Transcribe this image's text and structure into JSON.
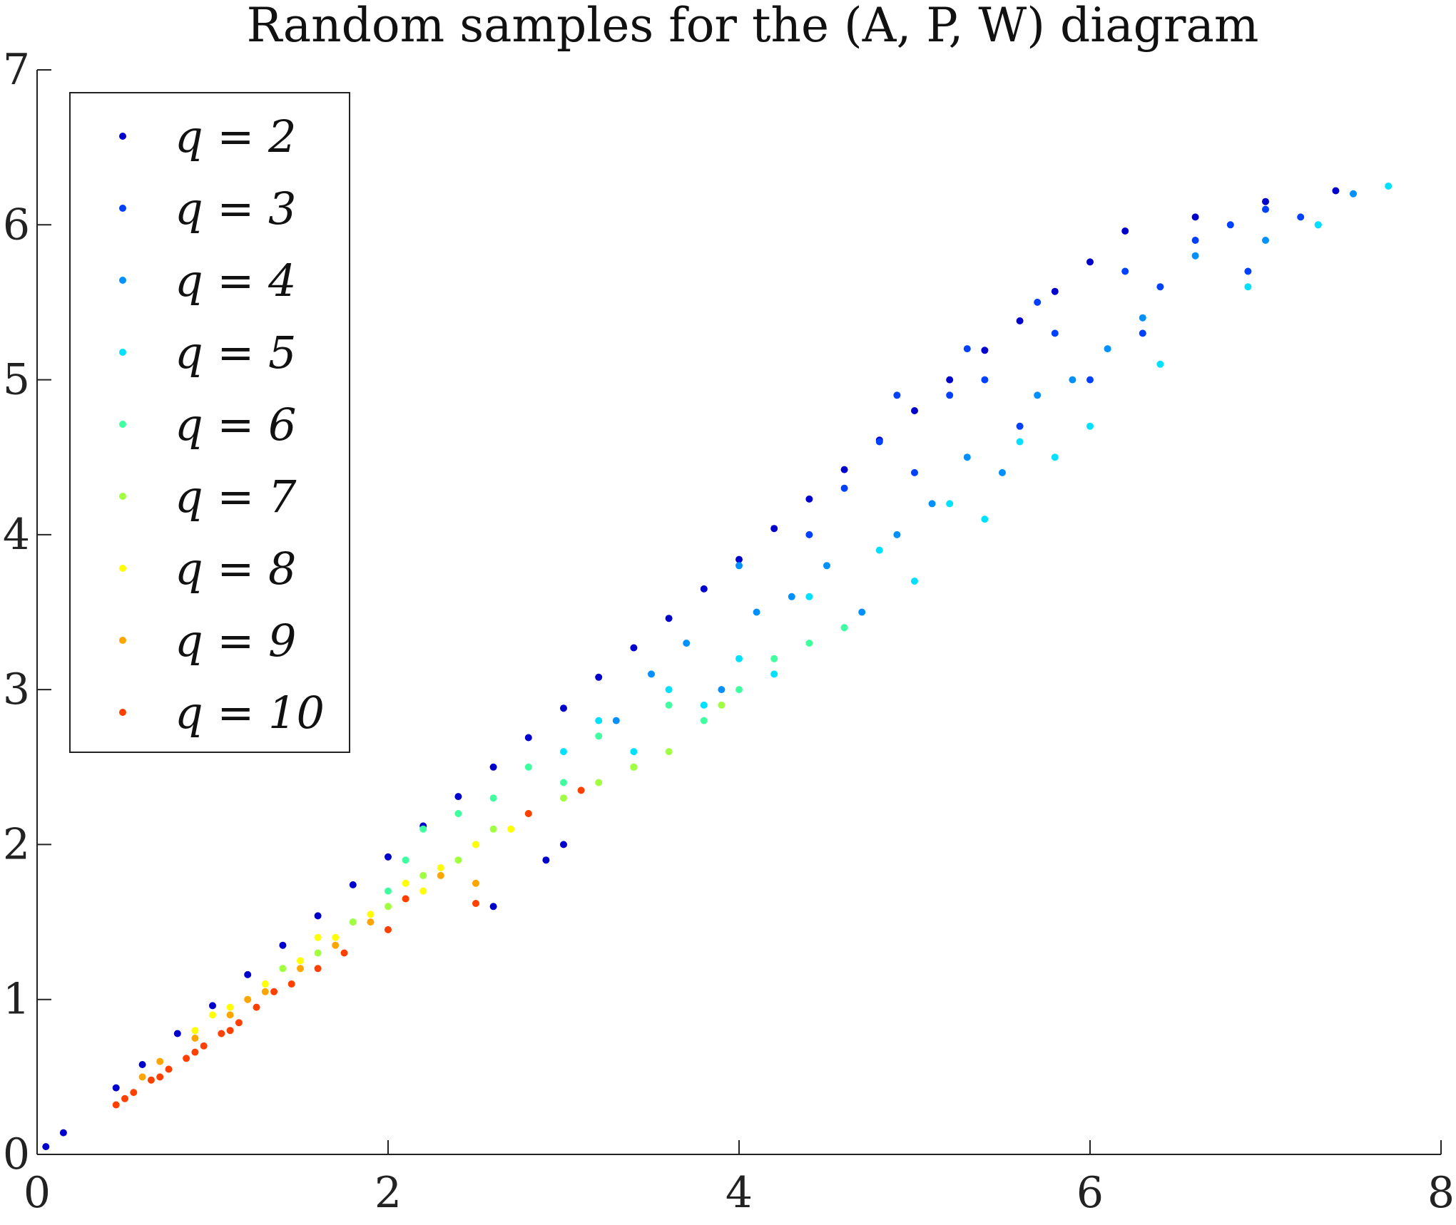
{
  "chart_data": {
    "type": "scatter",
    "title": "Random samples for the (A, P, W) diagram",
    "xlabel": "",
    "ylabel": "",
    "xlim": [
      0,
      8
    ],
    "ylim": [
      0,
      7
    ],
    "xticks": [
      "0",
      "2",
      "4",
      "6",
      "8"
    ],
    "yticks": [
      "0",
      "1",
      "2",
      "3",
      "4",
      "5",
      "6",
      "7"
    ],
    "grid": false,
    "legend_position": "top-left",
    "series": [
      {
        "name": "q = 2",
        "color": "#0000cc",
        "points": [
          [
            0.05,
            0.05
          ],
          [
            0.15,
            0.14
          ],
          [
            0.45,
            0.43
          ],
          [
            0.6,
            0.58
          ],
          [
            0.8,
            0.78
          ],
          [
            1.0,
            0.96
          ],
          [
            1.2,
            1.16
          ],
          [
            1.4,
            1.35
          ],
          [
            1.6,
            1.54
          ],
          [
            1.8,
            1.74
          ],
          [
            2.0,
            1.92
          ],
          [
            2.2,
            2.12
          ],
          [
            2.4,
            2.31
          ],
          [
            2.6,
            2.5
          ],
          [
            2.8,
            2.69
          ],
          [
            3.0,
            2.88
          ],
          [
            3.2,
            3.08
          ],
          [
            3.4,
            3.27
          ],
          [
            3.6,
            3.46
          ],
          [
            3.8,
            3.65
          ],
          [
            4.0,
            3.84
          ],
          [
            4.2,
            4.04
          ],
          [
            4.4,
            4.23
          ],
          [
            4.6,
            4.42
          ],
          [
            4.8,
            4.61
          ],
          [
            5.0,
            4.8
          ],
          [
            5.2,
            5.0
          ],
          [
            5.4,
            5.19
          ],
          [
            5.6,
            5.38
          ],
          [
            5.8,
            5.57
          ],
          [
            6.0,
            5.76
          ],
          [
            6.2,
            5.96
          ],
          [
            6.6,
            6.05
          ],
          [
            7.0,
            6.15
          ],
          [
            7.4,
            6.22
          ],
          [
            2.6,
            1.6
          ],
          [
            2.9,
            1.9
          ],
          [
            3.0,
            2.0
          ]
        ]
      },
      {
        "name": "q = 3",
        "color": "#0040ff",
        "points": [
          [
            4.6,
            4.3
          ],
          [
            4.8,
            4.6
          ],
          [
            5.0,
            4.4
          ],
          [
            5.2,
            4.9
          ],
          [
            5.4,
            5.0
          ],
          [
            5.6,
            4.7
          ],
          [
            5.8,
            5.3
          ],
          [
            6.0,
            5.0
          ],
          [
            6.2,
            5.7
          ],
          [
            6.4,
            5.6
          ],
          [
            6.6,
            5.9
          ],
          [
            6.8,
            6.0
          ],
          [
            7.0,
            6.1
          ],
          [
            7.2,
            6.05
          ],
          [
            6.9,
            5.7
          ],
          [
            4.4,
            4.0
          ],
          [
            4.9,
            4.9
          ],
          [
            5.3,
            5.2
          ],
          [
            5.7,
            5.5
          ],
          [
            6.3,
            5.3
          ]
        ]
      },
      {
        "name": "q = 4",
        "color": "#0090ff",
        "points": [
          [
            3.5,
            3.1
          ],
          [
            3.7,
            3.3
          ],
          [
            3.9,
            3.0
          ],
          [
            4.1,
            3.5
          ],
          [
            4.3,
            3.6
          ],
          [
            4.5,
            3.8
          ],
          [
            4.7,
            3.5
          ],
          [
            4.9,
            4.0
          ],
          [
            5.1,
            4.2
          ],
          [
            5.3,
            4.5
          ],
          [
            5.5,
            4.4
          ],
          [
            5.7,
            4.9
          ],
          [
            5.9,
            5.0
          ],
          [
            6.1,
            5.2
          ],
          [
            6.3,
            5.4
          ],
          [
            6.6,
            5.8
          ],
          [
            7.0,
            5.9
          ],
          [
            7.3,
            6.0
          ],
          [
            7.5,
            6.2
          ],
          [
            3.3,
            2.8
          ],
          [
            4.0,
            3.8
          ]
        ]
      },
      {
        "name": "q = 5",
        "color": "#00e0ff",
        "points": [
          [
            3.0,
            2.6
          ],
          [
            3.2,
            2.8
          ],
          [
            3.4,
            2.6
          ],
          [
            3.6,
            3.0
          ],
          [
            3.8,
            2.9
          ],
          [
            4.0,
            3.2
          ],
          [
            4.2,
            3.1
          ],
          [
            4.4,
            3.6
          ],
          [
            4.6,
            3.4
          ],
          [
            4.8,
            3.9
          ],
          [
            5.0,
            3.7
          ],
          [
            5.2,
            4.2
          ],
          [
            5.4,
            4.1
          ],
          [
            5.6,
            4.6
          ],
          [
            5.8,
            4.5
          ],
          [
            6.0,
            4.7
          ],
          [
            6.4,
            5.1
          ],
          [
            6.9,
            5.6
          ],
          [
            7.3,
            6.0
          ],
          [
            7.7,
            6.25
          ]
        ]
      },
      {
        "name": "q = 6",
        "color": "#40ffa0",
        "points": [
          [
            2.2,
            2.1
          ],
          [
            2.4,
            2.2
          ],
          [
            2.6,
            2.3
          ],
          [
            2.8,
            2.5
          ],
          [
            3.0,
            2.4
          ],
          [
            3.2,
            2.7
          ],
          [
            3.4,
            2.5
          ],
          [
            3.6,
            2.9
          ],
          [
            3.8,
            2.8
          ],
          [
            4.0,
            3.0
          ],
          [
            4.2,
            3.2
          ],
          [
            4.4,
            3.3
          ],
          [
            4.6,
            3.4
          ],
          [
            2.0,
            1.7
          ],
          [
            1.8,
            1.5
          ],
          [
            2.1,
            1.9
          ],
          [
            2.5,
            2.0
          ]
        ]
      },
      {
        "name": "q = 7",
        "color": "#a0ff40",
        "points": [
          [
            1.6,
            1.3
          ],
          [
            1.8,
            1.5
          ],
          [
            2.0,
            1.6
          ],
          [
            2.2,
            1.8
          ],
          [
            2.4,
            1.9
          ],
          [
            2.6,
            2.1
          ],
          [
            2.8,
            2.2
          ],
          [
            3.0,
            2.3
          ],
          [
            3.2,
            2.4
          ],
          [
            3.4,
            2.5
          ],
          [
            3.6,
            2.6
          ],
          [
            3.9,
            2.9
          ],
          [
            1.4,
            1.2
          ],
          [
            1.2,
            1.0
          ]
        ]
      },
      {
        "name": "q = 8",
        "color": "#ffff00",
        "points": [
          [
            0.9,
            0.8
          ],
          [
            1.1,
            0.95
          ],
          [
            1.3,
            1.1
          ],
          [
            1.5,
            1.25
          ],
          [
            1.7,
            1.4
          ],
          [
            1.9,
            1.55
          ],
          [
            2.1,
            1.75
          ],
          [
            2.3,
            1.85
          ],
          [
            2.5,
            2.0
          ],
          [
            2.7,
            2.1
          ],
          [
            2.2,
            1.7
          ],
          [
            1.6,
            1.4
          ],
          [
            1.0,
            0.9
          ]
        ]
      },
      {
        "name": "q = 9",
        "color": "#ffa500",
        "points": [
          [
            0.7,
            0.6
          ],
          [
            0.9,
            0.75
          ],
          [
            1.1,
            0.9
          ],
          [
            1.3,
            1.05
          ],
          [
            1.5,
            1.2
          ],
          [
            1.7,
            1.35
          ],
          [
            1.9,
            1.5
          ],
          [
            2.1,
            1.65
          ],
          [
            2.3,
            1.8
          ],
          [
            2.5,
            1.75
          ],
          [
            1.2,
            1.0
          ],
          [
            0.6,
            0.5
          ]
        ]
      },
      {
        "name": "q = 10",
        "color": "#ff4000",
        "points": [
          [
            0.45,
            0.32
          ],
          [
            0.55,
            0.4
          ],
          [
            0.65,
            0.48
          ],
          [
            0.75,
            0.55
          ],
          [
            0.85,
            0.62
          ],
          [
            0.95,
            0.7
          ],
          [
            1.05,
            0.78
          ],
          [
            1.15,
            0.85
          ],
          [
            1.25,
            0.95
          ],
          [
            1.35,
            1.05
          ],
          [
            1.45,
            1.1
          ],
          [
            1.6,
            1.2
          ],
          [
            1.75,
            1.3
          ],
          [
            2.0,
            1.45
          ],
          [
            2.1,
            1.65
          ],
          [
            2.5,
            1.62
          ],
          [
            2.8,
            2.2
          ],
          [
            3.1,
            2.35
          ],
          [
            0.5,
            0.36
          ],
          [
            0.7,
            0.5
          ],
          [
            0.9,
            0.66
          ],
          [
            1.1,
            0.8
          ]
        ]
      }
    ]
  }
}
